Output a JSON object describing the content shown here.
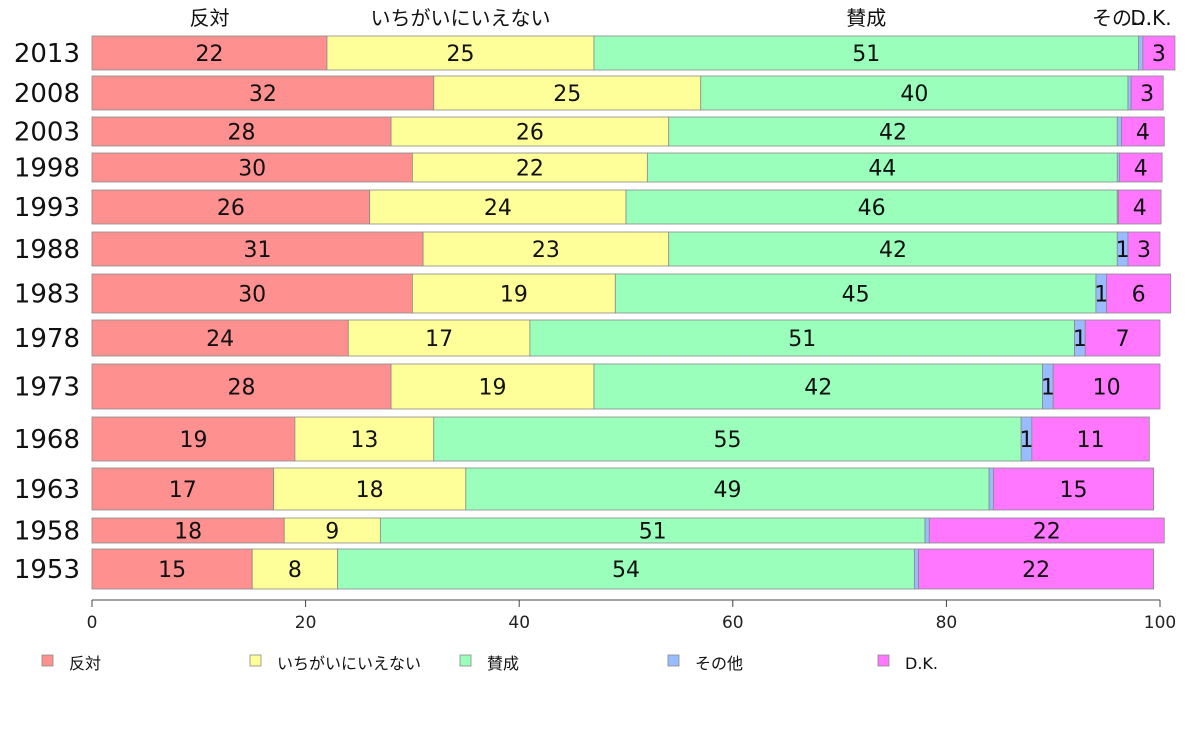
{
  "chart_data": {
    "type": "bar",
    "orientation": "horizontal",
    "stacked": true,
    "categories": [
      "2013",
      "2008",
      "2003",
      "1998",
      "1993",
      "1988",
      "1983",
      "1978",
      "1973",
      "1968",
      "1963",
      "1958",
      "1953"
    ],
    "series": [
      {
        "name": "反対",
        "color": "#ff9090",
        "values": [
          22,
          32,
          28,
          30,
          26,
          31,
          30,
          24,
          28,
          19,
          17,
          18,
          15
        ]
      },
      {
        "name": "いちがいにいえない",
        "color": "#ffff99",
        "values": [
          25,
          25,
          26,
          22,
          24,
          23,
          19,
          17,
          19,
          13,
          18,
          9,
          8
        ]
      },
      {
        "name": "賛成",
        "color": "#99ffbb",
        "values": [
          51,
          40,
          42,
          44,
          46,
          42,
          45,
          51,
          42,
          55,
          49,
          51,
          54
        ]
      },
      {
        "name": "その他",
        "color": "#99bbff",
        "values": [
          0.4,
          0.3,
          0.4,
          0.2,
          0.1,
          1,
          1,
          1,
          1,
          1,
          0.4,
          0.4,
          0.4
        ]
      },
      {
        "name": "D.K.",
        "color": "#ff77ff",
        "values": [
          3,
          3,
          4,
          4,
          4,
          3,
          6,
          7,
          10,
          11,
          15,
          22,
          22
        ]
      }
    ],
    "value_labels": [
      [
        "22",
        "25",
        "51",
        "",
        "3"
      ],
      [
        "32",
        "25",
        "40",
        "",
        "3"
      ],
      [
        "28",
        "26",
        "42",
        "",
        "4"
      ],
      [
        "30",
        "22",
        "44",
        "",
        "4"
      ],
      [
        "26",
        "24",
        "46",
        "",
        "4"
      ],
      [
        "31",
        "23",
        "42",
        "1",
        "3"
      ],
      [
        "30",
        "19",
        "45",
        "1",
        "6"
      ],
      [
        "24",
        "17",
        "51",
        "1",
        "7"
      ],
      [
        "28",
        "19",
        "42",
        "1",
        "10"
      ],
      [
        "19",
        "13",
        "55",
        "1",
        "11"
      ],
      [
        "17",
        "18",
        "49",
        "",
        "15"
      ],
      [
        "18",
        "9",
        "51",
        "",
        "22"
      ],
      [
        "15",
        "8",
        "54",
        "",
        "22"
      ]
    ],
    "top_labels": [
      "反対",
      "いちがいにいえない",
      "賛成",
      "その他",
      "D.K."
    ],
    "top_label_display": [
      "反対",
      "いちがいにいえない",
      "賛成",
      "その…",
      "D.K."
    ],
    "x_ticks": [
      "0",
      "20",
      "40",
      "60",
      "80",
      "100"
    ],
    "xlim": [
      0,
      100
    ],
    "legend_position": "bottom",
    "grid": false
  }
}
